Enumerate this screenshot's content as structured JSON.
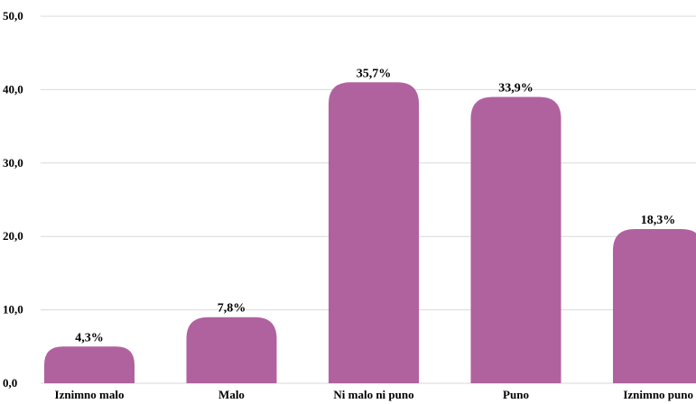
{
  "chart_data": {
    "type": "bar",
    "categories": [
      "Iznimno malo",
      "Malo",
      "Ni malo ni puno",
      "Puno",
      "Iznimno puno"
    ],
    "values": [
      5.0,
      9.0,
      41.0,
      39.0,
      21.0
    ],
    "data_labels": [
      "4,3%",
      "7,8%",
      "35,7%",
      "33,9%",
      "18,3%"
    ],
    "yticks": [
      "0,0",
      "10,0",
      "20,0",
      "30,0",
      "40,0",
      "50,0"
    ],
    "ylim": [
      0,
      50
    ],
    "grid": true,
    "legend": "none",
    "bar_color": "#b0629f"
  }
}
